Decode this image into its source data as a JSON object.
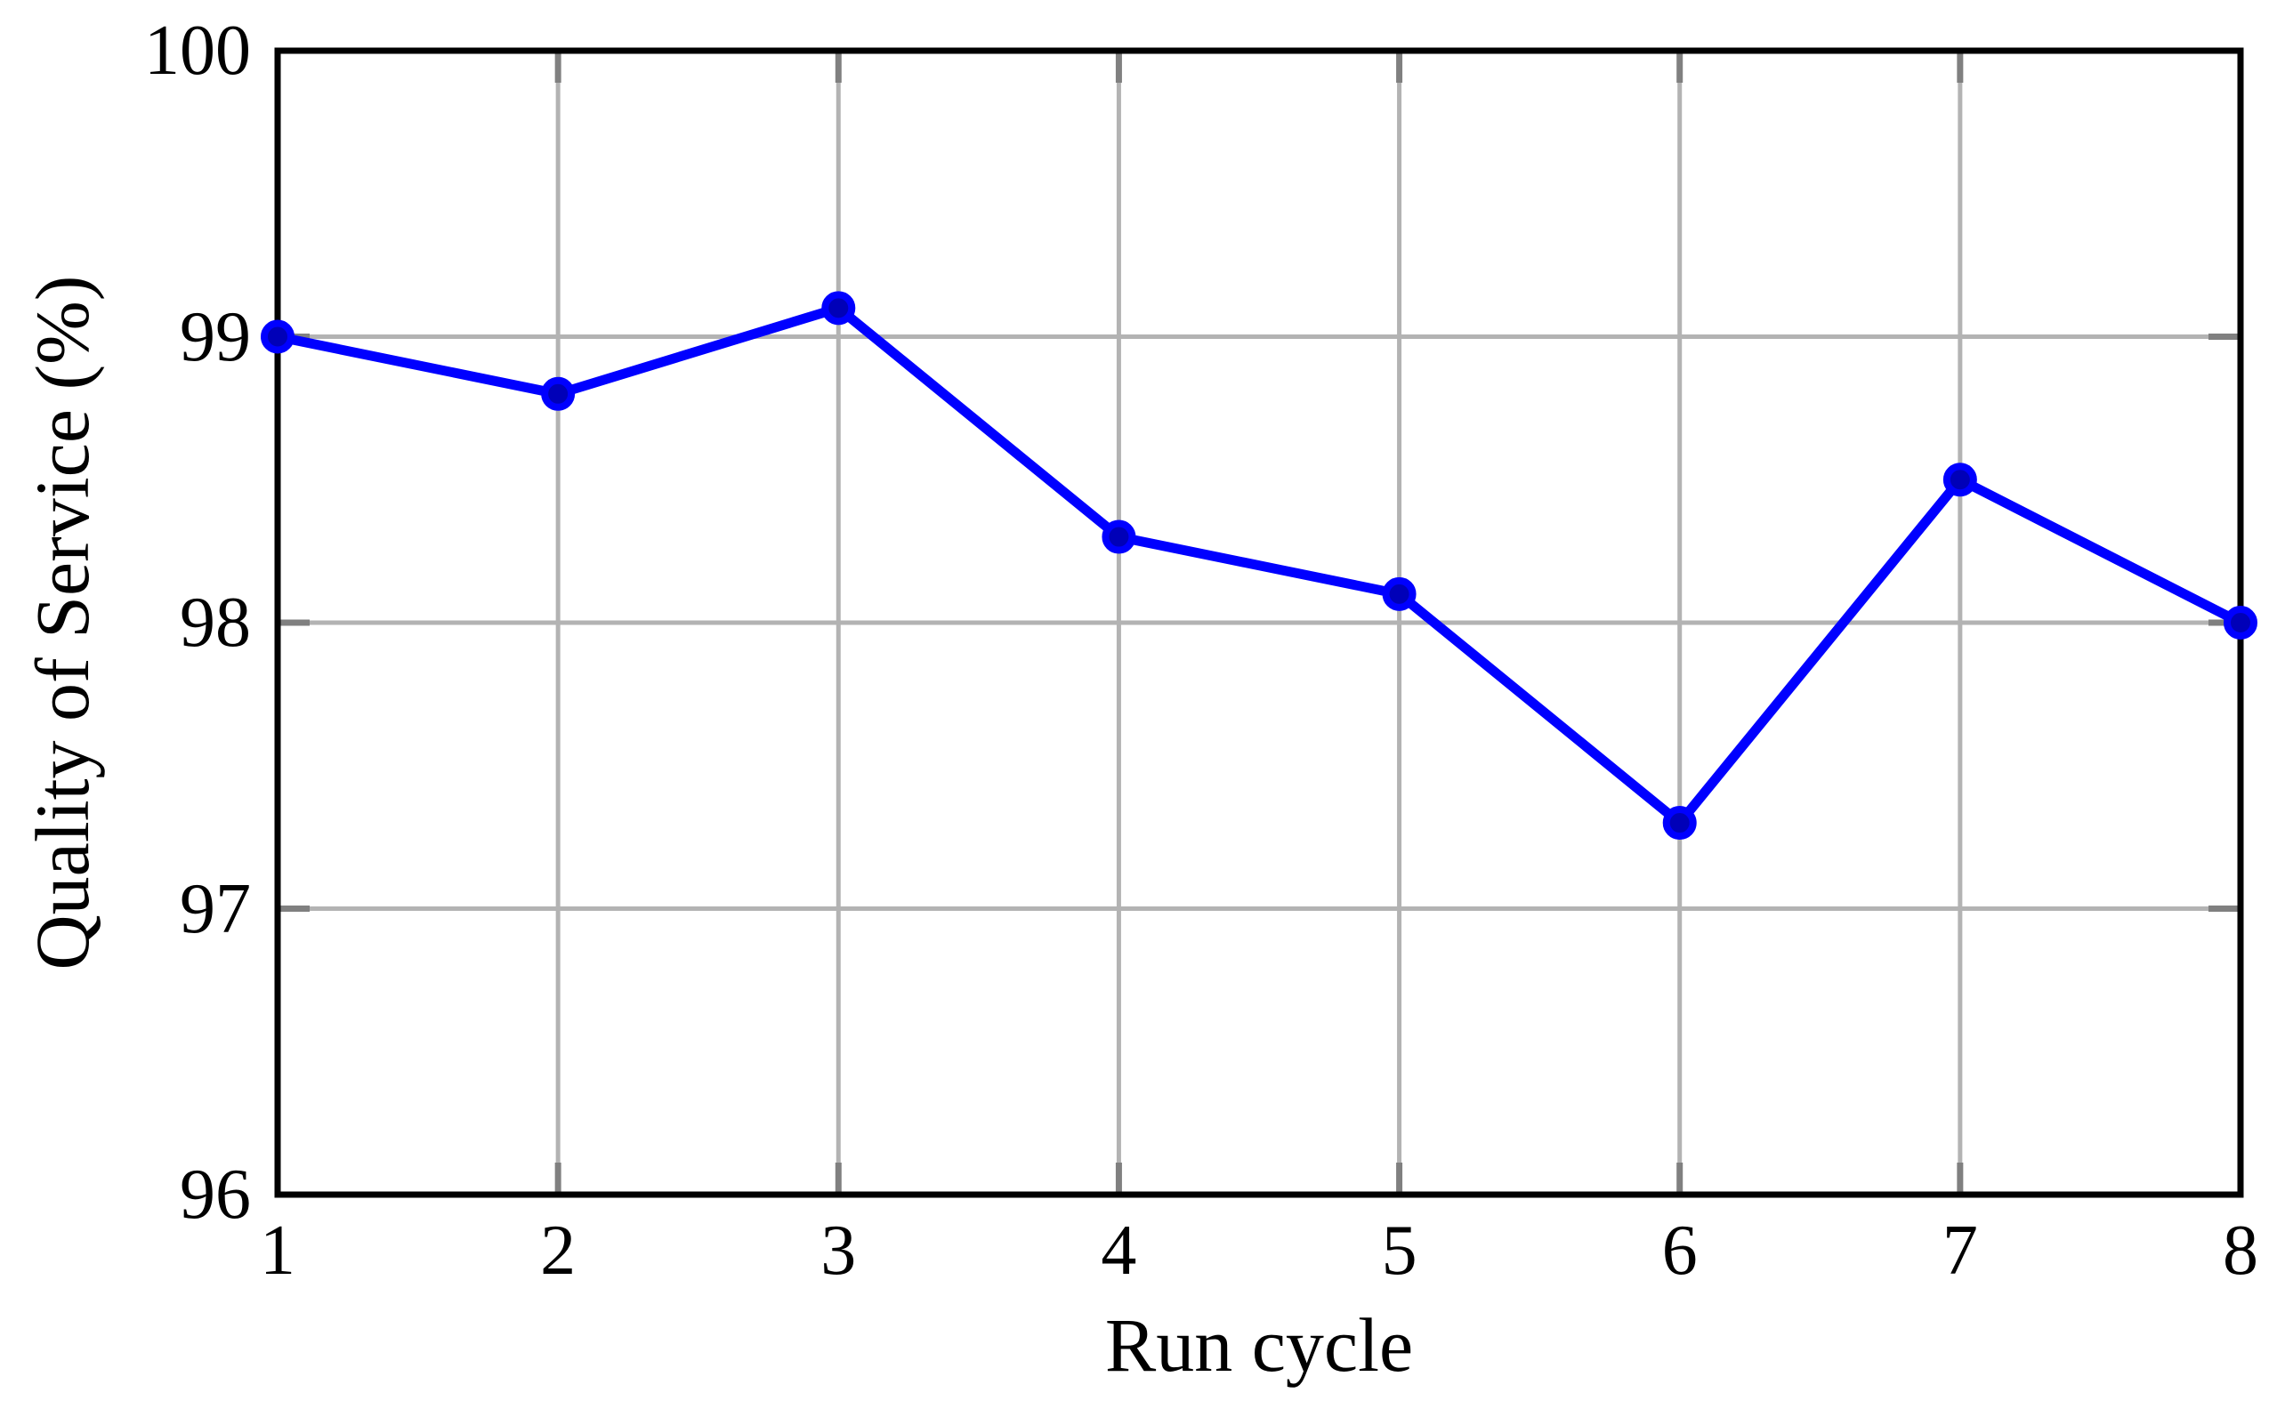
{
  "figure": {
    "background": "#ffffff"
  },
  "chart_data": {
    "type": "line",
    "title": "",
    "xlabel": "Run cycle",
    "ylabel": "Quality of Service (%)",
    "x": [
      1,
      2,
      3,
      4,
      5,
      6,
      7,
      8
    ],
    "series": [
      {
        "name": "Quality of Service",
        "values": [
          99.0,
          98.8,
          99.1,
          98.3,
          98.1,
          97.3,
          98.5,
          98.0
        ]
      }
    ],
    "xlim": [
      1,
      8
    ],
    "ylim": [
      96,
      100
    ],
    "x_ticks": [
      1,
      2,
      3,
      4,
      5,
      6,
      7,
      8
    ],
    "y_ticks": [
      96,
      97,
      98,
      99,
      100
    ],
    "grid": true,
    "legend_position": "none",
    "colors": {
      "line": "#0000ff",
      "marker_fill": "#0000b8",
      "marker_edge": "#0000ff",
      "grid": "#b3b3b3",
      "tick": "#808080",
      "axis_box": "#000000",
      "text": "#000000"
    }
  }
}
